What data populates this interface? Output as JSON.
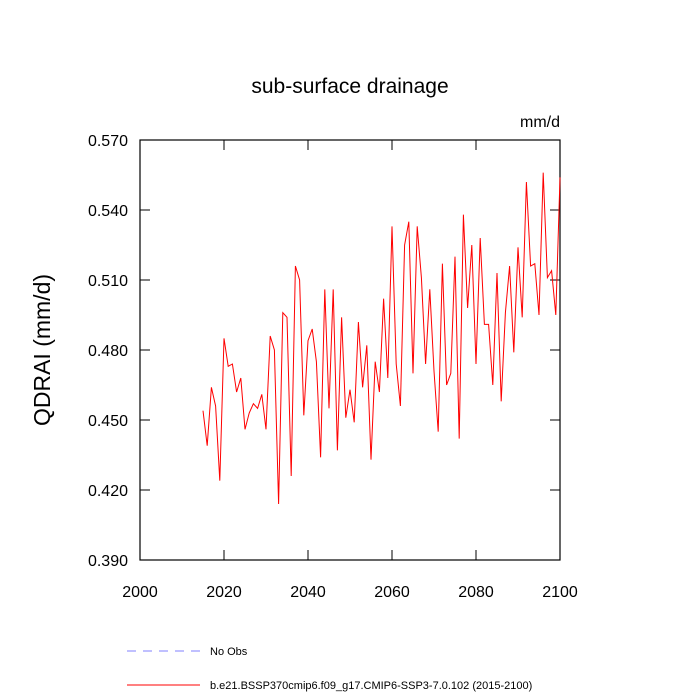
{
  "chart_data": {
    "type": "line",
    "title": "sub-surface drainage",
    "units": "mm/d",
    "ylabel": "QDRAI  (mm/d)",
    "x": [
      2015,
      2016,
      2017,
      2018,
      2019,
      2020,
      2021,
      2022,
      2023,
      2024,
      2025,
      2026,
      2027,
      2028,
      2029,
      2030,
      2031,
      2032,
      2033,
      2034,
      2035,
      2036,
      2037,
      2038,
      2039,
      2040,
      2041,
      2042,
      2043,
      2044,
      2045,
      2046,
      2047,
      2048,
      2049,
      2050,
      2051,
      2052,
      2053,
      2054,
      2055,
      2056,
      2057,
      2058,
      2059,
      2060,
      2061,
      2062,
      2063,
      2064,
      2065,
      2066,
      2067,
      2068,
      2069,
      2070,
      2071,
      2072,
      2073,
      2074,
      2075,
      2076,
      2077,
      2078,
      2079,
      2080,
      2081,
      2082,
      2083,
      2084,
      2085,
      2086,
      2087,
      2088,
      2089,
      2090,
      2091,
      2092,
      2093,
      2094,
      2095,
      2096,
      2097,
      2098,
      2099,
      2100
    ],
    "series": [
      {
        "name": "b.e21.BSSP370cmip6.f09_g17.CMIP6-SSP3-7.0.102 (2015-2100)",
        "color": "#ff0000",
        "values": [
          0.454,
          0.439,
          0.464,
          0.456,
          0.424,
          0.485,
          0.473,
          0.474,
          0.462,
          0.468,
          0.446,
          0.453,
          0.457,
          0.455,
          0.461,
          0.446,
          0.486,
          0.48,
          0.414,
          0.496,
          0.494,
          0.426,
          0.516,
          0.51,
          0.452,
          0.484,
          0.489,
          0.475,
          0.434,
          0.506,
          0.455,
          0.506,
          0.437,
          0.494,
          0.451,
          0.463,
          0.449,
          0.492,
          0.464,
          0.482,
          0.433,
          0.475,
          0.462,
          0.502,
          0.468,
          0.533,
          0.474,
          0.456,
          0.525,
          0.535,
          0.47,
          0.533,
          0.511,
          0.474,
          0.506,
          0.471,
          0.445,
          0.517,
          0.465,
          0.47,
          0.52,
          0.442,
          0.538,
          0.498,
          0.525,
          0.474,
          0.528,
          0.491,
          0.491,
          0.465,
          0.513,
          0.458,
          0.496,
          0.516,
          0.479,
          0.524,
          0.494,
          0.552,
          0.516,
          0.517,
          0.495,
          0.556,
          0.511,
          0.514,
          0.495,
          0.554
        ]
      }
    ],
    "reference_legend": {
      "name": "No Obs",
      "color": "#8080ff"
    },
    "xlim": [
      2000,
      2100
    ],
    "xticks": [
      2000,
      2020,
      2040,
      2060,
      2080,
      2100
    ],
    "ylim": [
      0.39,
      0.57
    ],
    "yticks": [
      {
        "value": 0.39,
        "label": "0.390"
      },
      {
        "value": 0.42,
        "label": "0.420"
      },
      {
        "value": 0.45,
        "label": "0.450"
      },
      {
        "value": 0.48,
        "label": "0.480"
      },
      {
        "value": 0.51,
        "label": "0.510"
      },
      {
        "value": 0.54,
        "label": "0.540"
      },
      {
        "value": 0.57,
        "label": "0.570"
      }
    ]
  }
}
